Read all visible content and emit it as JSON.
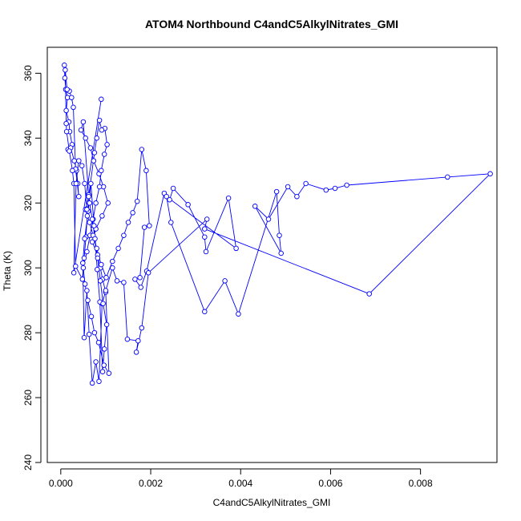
{
  "chart_data": {
    "type": "line",
    "title": "ATOM4 Northbound C4andC5AlkylNitrates_GMI",
    "xlabel": "C4andC5AlkylNitrates_GMI",
    "ylabel": "Theta (K)",
    "xlim": [
      -0.0003,
      0.0097
    ],
    "ylim": [
      240,
      368
    ],
    "x_ticks": [
      0.0,
      0.002,
      0.004,
      0.006,
      0.008
    ],
    "x_tick_labels": [
      "0.000",
      "0.002",
      "0.004",
      "0.006",
      "0.008"
    ],
    "y_ticks": [
      240,
      260,
      280,
      300,
      320,
      340,
      360
    ],
    "y_tick_labels": [
      "240",
      "260",
      "280",
      "300",
      "320",
      "340",
      "360"
    ],
    "grid": false,
    "series_color": "#0000ff",
    "marker": "open-circle",
    "x": [
      8e-05,
      9e-05,
      0.00011,
      0.00015,
      0.00012,
      0.00018,
      0.0002,
      0.00025,
      0.00016,
      0.00022,
      0.0003,
      0.00035,
      0.00038,
      0.0004,
      0.00033,
      0.00028,
      0.00024,
      0.00019,
      0.00014,
      0.0001,
      0.00012,
      0.00013,
      0.00019,
      0.00026,
      0.00029,
      0.00033,
      0.00048,
      0.00052,
      0.00056,
      0.00059,
      0.00062,
      0.0005,
      0.00045,
      0.00055,
      0.00066,
      0.00073,
      0.00085,
      0.00095,
      0.00105,
      0.00092,
      0.00078,
      0.0007,
      0.00082,
      0.00088,
      0.00093,
      0.001,
      0.00107,
      0.00096,
      0.00084,
      0.00075,
      0.00068,
      0.0006,
      0.00054,
      0.0005,
      0.00058,
      0.00065,
      0.00072,
      0.00078,
      0.00086,
      0.0009,
      0.00097,
      0.00103,
      0.00098,
      0.00091,
      0.00086,
      0.0008,
      0.00075,
      0.00062,
      0.00055,
      0.00064,
      0.00072,
      0.0008,
      0.0009,
      0.00101,
      0.00115,
      0.00128,
      0.0014,
      0.0015,
      0.0016,
      0.0017,
      0.0018,
      0.0019,
      0.00197,
      0.00186,
      0.00176,
      0.00165,
      0.00178,
      0.00191,
      0.0023,
      0.00242,
      0.0025,
      0.00283,
      0.0032,
      0.00323,
      0.00373,
      0.0039,
      0.00235,
      0.00245,
      0.0032,
      0.00365,
      0.00395,
      0.0048,
      0.00486,
      0.0049,
      0.00432,
      0.00462,
      0.00505,
      0.00525,
      0.00545,
      0.0059,
      0.0061,
      0.00636,
      0.0086,
      0.00955,
      0.00686,
      0.0032,
      0.00325,
      0.00195,
      0.0018,
      0.00168,
      0.00172,
      0.00148,
      0.0014,
      0.00125,
      0.00115,
      0.001,
      0.00092,
      0.00085,
      0.00078,
      0.0007,
      0.00063,
      0.00058,
      0.00052,
      0.00049,
      0.00053,
      0.00061,
      0.00067,
      0.00074,
      0.00081,
      0.00087,
      0.00093,
      0.00097,
      0.00102,
      0.00094,
      0.00088,
      0.00082,
      0.00076,
      0.0007,
      0.00064,
      0.00058,
      0.00053,
      0.00047,
      0.0004,
      0.00034,
      0.00029,
      0.0009
    ],
    "y": [
      362.5,
      358.5,
      355.0,
      352.5,
      348.5,
      345.0,
      342.0,
      338.0,
      336.5,
      337.0,
      333.0,
      330.0,
      326.0,
      322.0,
      330.5,
      349.5,
      352.5,
      354.5,
      355.0,
      361.0,
      344.5,
      342.0,
      336.0,
      330.0,
      326.0,
      300.5,
      296.5,
      303.0,
      309.5,
      316.0,
      322.5,
      345.0,
      342.5,
      340.0,
      337.0,
      333.0,
      329.0,
      325.0,
      320.0,
      316.0,
      312.0,
      308.0,
      304.0,
      300.0,
      296.5,
      292.5,
      267.5,
      270.0,
      277.0,
      280.0,
      285.0,
      290.0,
      295.0,
      300.0,
      305.0,
      310.0,
      315.0,
      320.0,
      325.0,
      330.0,
      335.0,
      338.0,
      343.0,
      342.5,
      345.5,
      340.0,
      335.5,
      322.0,
      318.0,
      314.0,
      310.0,
      306.0,
      301.0,
      297.0,
      302.0,
      306.0,
      310.0,
      314.0,
      317.0,
      320.5,
      336.5,
      330.0,
      313.0,
      312.5,
      297.0,
      296.5,
      294.0,
      299.0,
      323.0,
      321.0,
      324.5,
      319.5,
      309.5,
      305.0,
      321.5,
      306.0,
      322.0,
      314.0,
      286.5,
      296.0,
      285.8,
      323.5,
      310.0,
      304.5,
      319.0,
      315.0,
      325.0,
      322.0,
      326.0,
      324.0,
      324.5,
      325.5,
      328.0,
      329.0,
      292.0,
      312.0,
      315.0,
      298.5,
      281.5,
      274.0,
      277.5,
      278.0,
      295.5,
      296.0,
      300.0,
      293.0,
      289.0,
      265.0,
      271.0,
      264.5,
      279.5,
      293.0,
      278.5,
      301.5,
      309.0,
      317.5,
      326.0,
      313.0,
      299.5,
      289.5,
      268.0,
      275.0,
      282.5,
      289.0,
      296.0,
      303.0,
      309.0,
      315.0,
      320.0,
      318.0,
      326.0,
      331.5,
      333.0,
      326.0,
      298.5,
      352.0
    ]
  }
}
